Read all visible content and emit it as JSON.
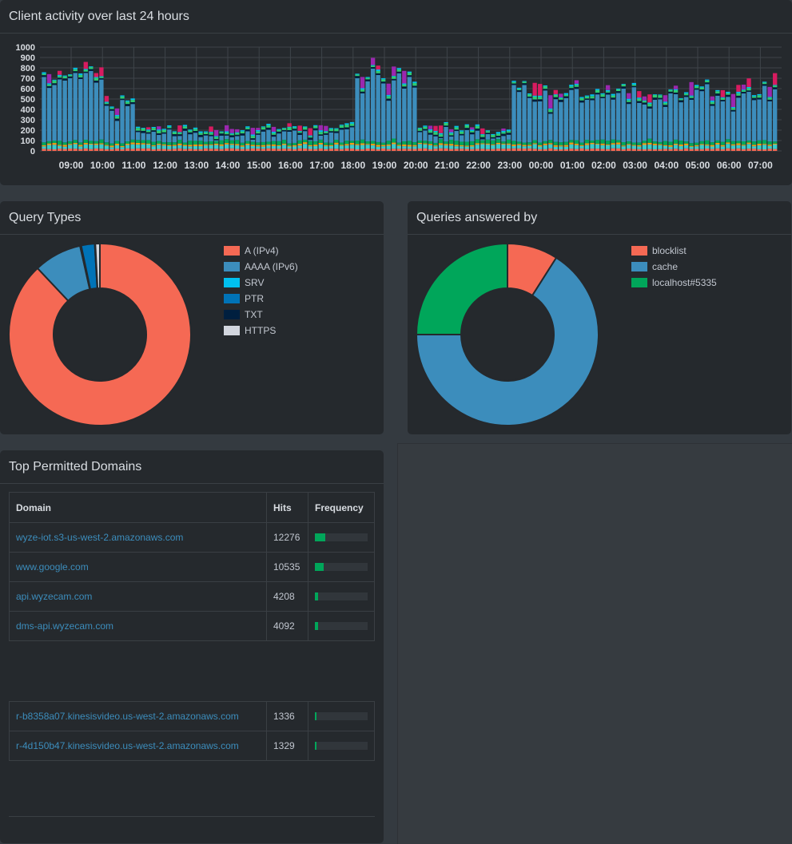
{
  "activity": {
    "title": "Client activity over last 24 hours",
    "y_ticks": [
      "1000",
      "900",
      "800",
      "700",
      "600",
      "500",
      "400",
      "300",
      "200",
      "100",
      "0"
    ],
    "x_ticks": [
      "09:00",
      "10:00",
      "11:00",
      "12:00",
      "13:00",
      "14:00",
      "15:00",
      "16:00",
      "17:00",
      "18:00",
      "19:00",
      "20:00",
      "21:00",
      "22:00",
      "23:00",
      "00:00",
      "01:00",
      "02:00",
      "03:00",
      "04:00",
      "05:00",
      "06:00",
      "07:00"
    ]
  },
  "chart_data": [
    {
      "type": "bar",
      "title": "Client activity over last 24 hours",
      "stacked": true,
      "ylim": [
        0,
        1000
      ],
      "x": [
        "09:00",
        "10:00",
        "11:00",
        "12:00",
        "13:00",
        "14:00",
        "15:00",
        "16:00",
        "17:00",
        "18:00",
        "19:00",
        "20:00",
        "21:00",
        "22:00",
        "23:00",
        "00:00",
        "01:00",
        "02:00",
        "03:00",
        "04:00",
        "05:00",
        "06:00",
        "07:00"
      ],
      "hourly_totals": [
        760,
        480,
        230,
        220,
        215,
        225,
        240,
        230,
        250,
        800,
        720,
        260,
        230,
        190,
        600,
        590,
        600,
        590,
        600,
        595,
        600,
        620,
        690
      ],
      "colors": [
        "#f56954",
        "#f39c12",
        "#00a65a",
        "#00c0ef",
        "#3c8dbc",
        "#001f3f",
        "#39cccc",
        "#2ecc71",
        "#d81b60",
        "#9b27af"
      ]
    },
    {
      "type": "pie",
      "title": "Query Types",
      "labels": [
        "A (IPv4)",
        "AAAA (IPv6)",
        "SRV",
        "PTR",
        "TXT",
        "HTTPS"
      ],
      "values": [
        88.0,
        8.5,
        0.2,
        2.4,
        0.1,
        0.8
      ],
      "colors": [
        "#f56954",
        "#3c8dbc",
        "#00c0ef",
        "#0073b7",
        "#001f3f",
        "#d2d6de"
      ]
    },
    {
      "type": "pie",
      "title": "Queries answered by",
      "labels": [
        "blocklist",
        "cache",
        "localhost#5335"
      ],
      "values": [
        9,
        66,
        25
      ],
      "colors": [
        "#f56954",
        "#3c8dbc",
        "#00a65a"
      ]
    }
  ],
  "query_types": {
    "title": "Query Types",
    "legend": [
      {
        "label": "A (IPv4)",
        "color": "#f56954"
      },
      {
        "label": "AAAA (IPv6)",
        "color": "#3c8dbc"
      },
      {
        "label": "SRV",
        "color": "#00c0ef"
      },
      {
        "label": "PTR",
        "color": "#0073b7"
      },
      {
        "label": "TXT",
        "color": "#001f3f"
      },
      {
        "label": "HTTPS",
        "color": "#d2d6de"
      }
    ]
  },
  "answered_by": {
    "title": "Queries answered by",
    "legend": [
      {
        "label": "blocklist",
        "color": "#f56954"
      },
      {
        "label": "cache",
        "color": "#3c8dbc"
      },
      {
        "label": "localhost#5335",
        "color": "#00a65a"
      }
    ]
  },
  "top_domains": {
    "title": "Top Permitted Domains",
    "columns": {
      "domain": "Domain",
      "hits": "Hits",
      "frequency": "Frequency"
    },
    "rows_top": [
      {
        "domain": "wyze-iot.s3-us-west-2.amazonaws.com",
        "hits": "12276",
        "freq": 0.19
      },
      {
        "domain": "www.google.com",
        "hits": "10535",
        "freq": 0.16
      },
      {
        "domain": "api.wyzecam.com",
        "hits": "4208",
        "freq": 0.06
      },
      {
        "domain": "dms-api.wyzecam.com",
        "hits": "4092",
        "freq": 0.06
      }
    ],
    "rows_bottom": [
      {
        "domain": "r-b8358a07.kinesisvideo.us-west-2.amazonaws.com",
        "hits": "1336",
        "freq": 0.02
      },
      {
        "domain": "r-4d150b47.kinesisvideo.us-west-2.amazonaws.com",
        "hits": "1329",
        "freq": 0.02
      }
    ]
  }
}
